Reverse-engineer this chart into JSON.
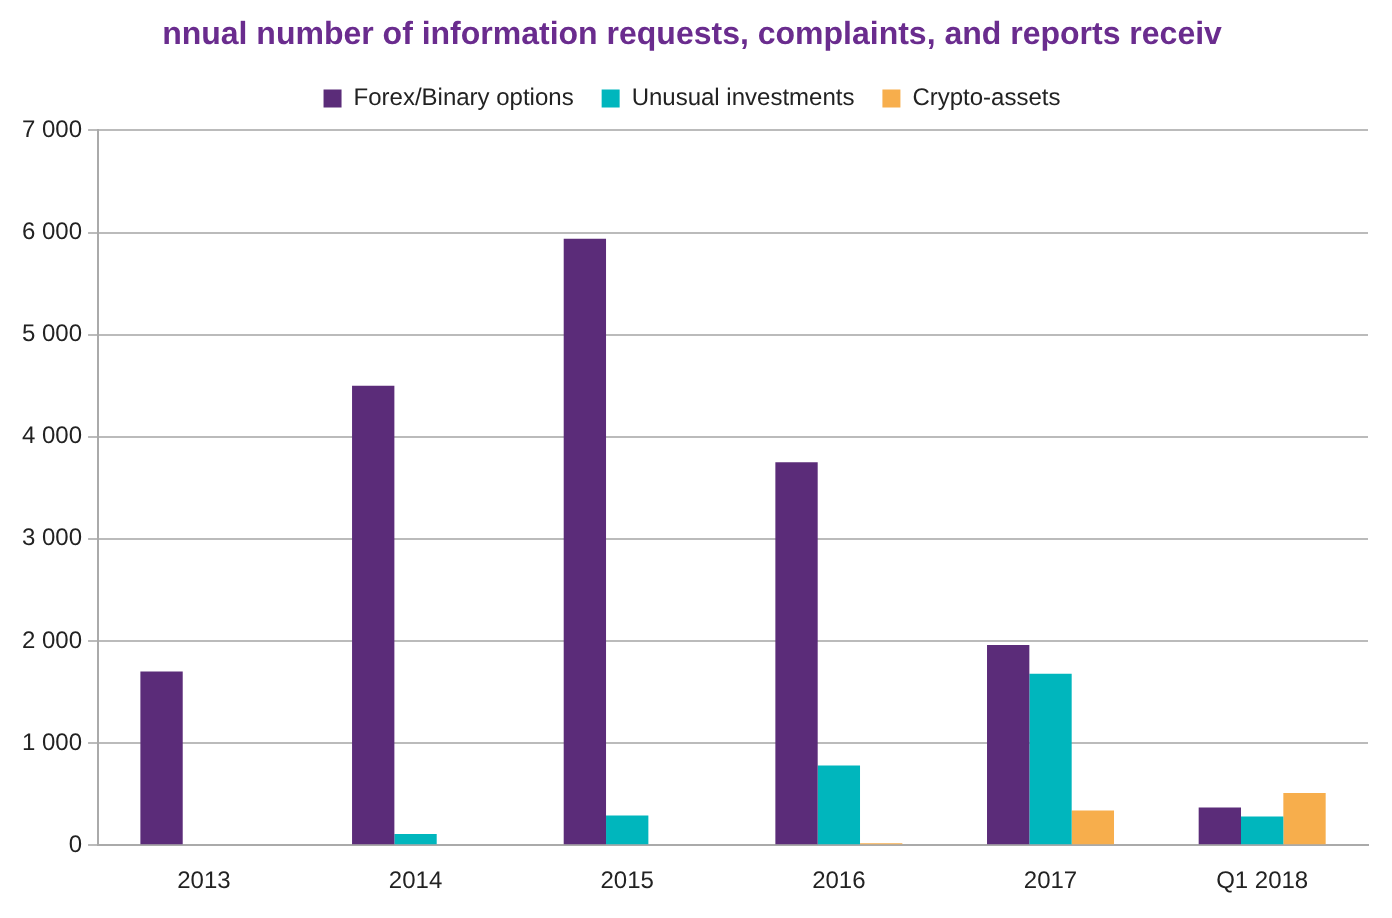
{
  "chart_data": {
    "type": "bar",
    "title": "nnual number of information requests, complaints, and reports receiv",
    "categories": [
      "2013",
      "2014",
      "2015",
      "2016",
      "2017",
      "Q1 2018"
    ],
    "series": [
      {
        "name": "Forex/Binary options",
        "color": "#5b2c79",
        "values": [
          1700,
          4500,
          5940,
          3750,
          1960,
          370
        ]
      },
      {
        "name": "Unusual investments",
        "color": "#00b6bd",
        "values": [
          0,
          110,
          290,
          780,
          1680,
          280
        ]
      },
      {
        "name": "Crypto-assets",
        "color": "#f7ae4c",
        "values": [
          0,
          0,
          0,
          20,
          340,
          510
        ]
      }
    ],
    "ylim": [
      0,
      7000
    ],
    "yticks": [
      {
        "value": 0,
        "label": "0"
      },
      {
        "value": 1000,
        "label": "1 000"
      },
      {
        "value": 2000,
        "label": "2 000"
      },
      {
        "value": 3000,
        "label": "3 000"
      },
      {
        "value": 4000,
        "label": "4 000"
      },
      {
        "value": 5000,
        "label": "5 000"
      },
      {
        "value": 6000,
        "label": "6 000"
      },
      {
        "value": 7000,
        "label": "7 000"
      }
    ],
    "grid": "y",
    "legend": "top"
  }
}
